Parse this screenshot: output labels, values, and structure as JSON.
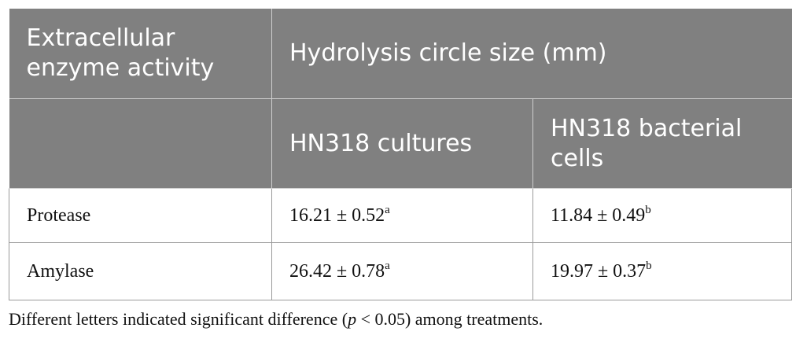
{
  "table": {
    "header": {
      "col1": "Extracellular enzyme activity",
      "group": "Hydrolysis circle size (mm)",
      "sub_col2": "HN318 cultures",
      "sub_col3": "HN318 bacterial cells"
    },
    "rows": [
      {
        "label": "Protease",
        "cultures_value": "16.21 ± 0.52",
        "cultures_sup": "a",
        "cells_value": "11.84 ± 0.49",
        "cells_sup": "b"
      },
      {
        "label": "Amylase",
        "cultures_value": "26.42 ± 0.78",
        "cultures_sup": "a",
        "cells_value": "19.97 ± 0.37",
        "cells_sup": "b"
      }
    ]
  },
  "footnote": {
    "pre": "Different letters indicated significant difference (",
    "p": "p",
    "post": " < 0.05) among treatments."
  }
}
